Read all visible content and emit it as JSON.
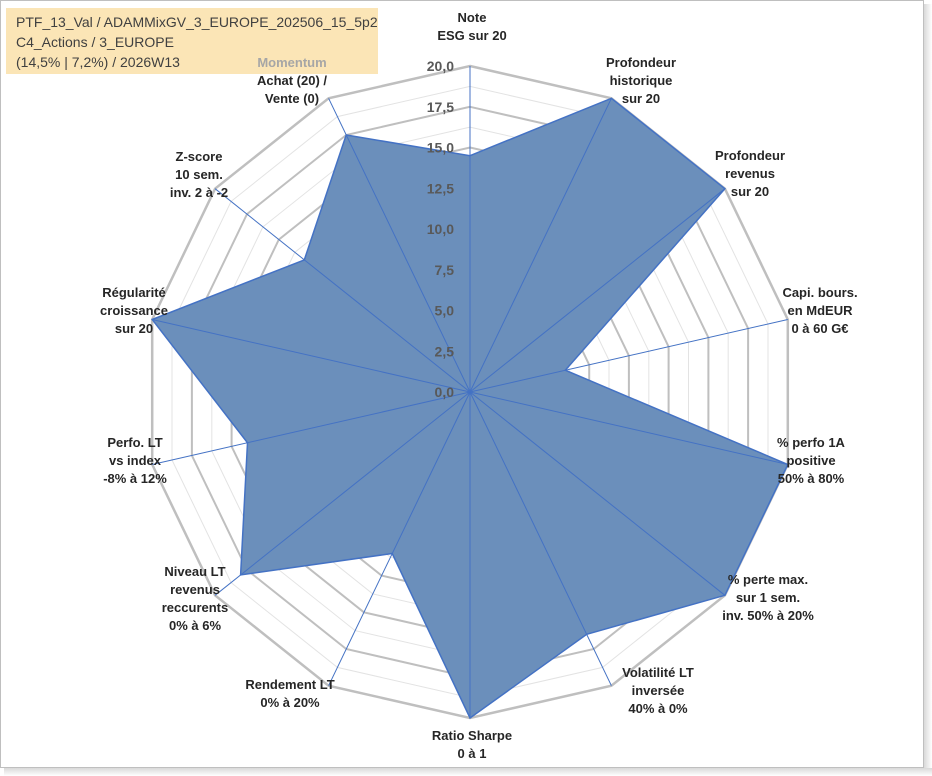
{
  "info_box": {
    "line1": "PTF_13_Val / ADAMMixGV_3_EUROPE_202506_15_5p2",
    "line2": "C4_Actions / 3_EUROPE",
    "line3": "(14,5% | 7,2%) / 2026W13"
  },
  "chart_data": {
    "type": "radar",
    "title": "",
    "ylim": [
      0,
      20
    ],
    "tick_step": 2.5,
    "tick_labels": [
      "0,0",
      "2,5",
      "5,0",
      "7,5",
      "10,0",
      "12,5",
      "15,0",
      "17,5",
      "20,0"
    ],
    "fill_color": "#6b8fbb",
    "line_color": "#4472c4",
    "grid_color": "#bfbfbf",
    "axes": [
      {
        "label": [
          "Note",
          "ESG sur 20"
        ],
        "value": 14.5
      },
      {
        "label": [
          "Profondeur",
          "historique",
          "sur 20"
        ],
        "value": 20
      },
      {
        "label": [
          "Profondeur",
          "revenus",
          "sur 20"
        ],
        "value": 20
      },
      {
        "label": [
          "Capi. bours.",
          "en MdEUR",
          "0 à 60 G€"
        ],
        "value": 6
      },
      {
        "label": [
          "% perfo 1A",
          "positive",
          "50% à 80%"
        ],
        "value": 20
      },
      {
        "label": [
          "% perte max.",
          "sur 1 sem.",
          "inv. 50% à 20%"
        ],
        "value": 20
      },
      {
        "label": [
          "Volatilité LT",
          "inversée",
          "40% à 0%"
        ],
        "value": 16.5
      },
      {
        "label": [
          "Ratio Sharpe",
          "0 à 1"
        ],
        "value": 20
      },
      {
        "label": [
          "Rendement LT",
          "0% à 20%"
        ],
        "value": 11
      },
      {
        "label": [
          "Niveau LT",
          "revenus",
          "reccurents",
          "0% à 6%"
        ],
        "value": 18
      },
      {
        "label": [
          "Perfo. LT",
          "vs index",
          "-8% à 12%"
        ],
        "value": 14
      },
      {
        "label": [
          "Régularité",
          "croissance",
          "sur 20"
        ],
        "value": 20
      },
      {
        "label": [
          "Z-score",
          "10 sem.",
          "inv. 2 à -2"
        ],
        "value": 13
      },
      {
        "label": [
          "Achat (20) /",
          "Vente (0)"
        ],
        "value": 17.5,
        "header": "Momentum"
      }
    ]
  }
}
